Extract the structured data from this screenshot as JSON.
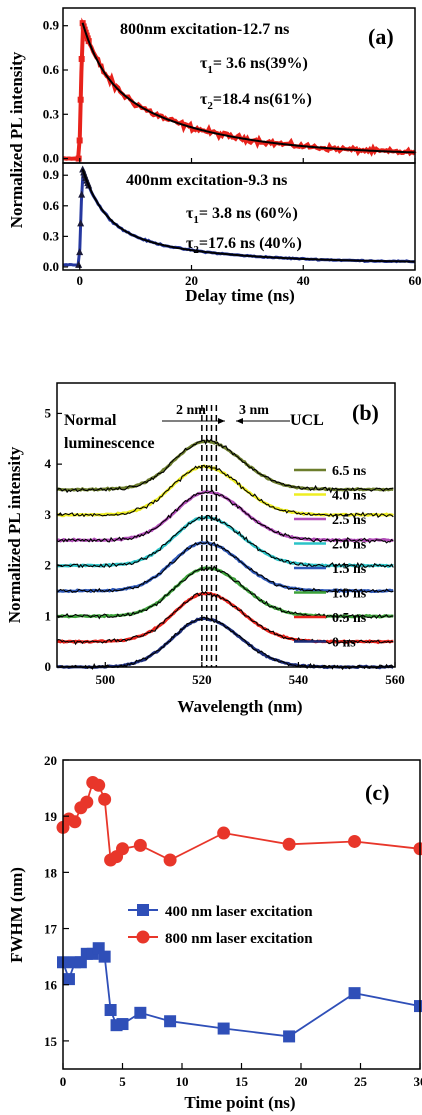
{
  "chart_data": [
    {
      "type": "line",
      "panel_label": "(a)",
      "xlabel": "Delay time (ns)",
      "ylabel": "Normalized PL intensity",
      "xlim": [
        -3,
        60
      ],
      "x_ticks": [
        "0",
        "20",
        "40",
        "60"
      ],
      "y_ticks": [
        "0.0",
        "0.3",
        "0.6",
        "0.9"
      ],
      "top": {
        "ylim": [
          -0.03,
          1.02
        ],
        "series_color": "#e8221b",
        "fit_color": "#000000",
        "text_lines": [
          "800nm excitation-12.7 ns"
        ],
        "tau1": {
          "sym": "τ",
          "sub": "1",
          "text": "= 3.6  ns(39%)"
        },
        "tau2": {
          "sym": "τ",
          "sub": "2",
          "text": "=18.4 ns(61%)"
        },
        "fit": {
          "a1": 0.39,
          "t1": 3.6,
          "a2": 0.61,
          "t2": 18.4,
          "amp": 0.9,
          "baseline": 0.0,
          "peak_x": 0.5
        }
      },
      "bottom": {
        "ylim": [
          -0.03,
          1.02
        ],
        "series_color": "#2638a0",
        "fit_color": "#000000",
        "text_lines": [
          "400nm excitation-9.3 ns"
        ],
        "tau1": {
          "sym": "τ",
          "sub": "1",
          "text": "=  3.8 ns (60%)"
        },
        "tau2": {
          "sym": "τ",
          "sub": "2",
          "text": "=17.6 ns (40%)"
        },
        "fit": {
          "a1": 0.6,
          "t1": 3.8,
          "a2": 0.4,
          "t2": 17.6,
          "amp": 0.92,
          "baseline": 0.02,
          "peak_x": 0.5
        }
      }
    },
    {
      "type": "line",
      "panel_label": "(b)",
      "xlabel": "Wavelength (nm)",
      "ylabel": "Normalized PL intensity",
      "xlim": [
        490,
        560
      ],
      "ylim": [
        0,
        5.6
      ],
      "x_ticks": [
        "500",
        "520",
        "540",
        "560"
      ],
      "y_ticks": [
        "0",
        "1",
        "2",
        "3",
        "4",
        "5"
      ],
      "annotations": {
        "left": "Normal",
        "left2": "luminescence",
        "right": "UCL",
        "gap1": "2 nm",
        "gap2": "3 nm"
      },
      "peak_lines_nm": [
        520.0,
        521.0,
        522.0,
        523.0
      ],
      "series": [
        {
          "name": "0   ns",
          "offset": 0.0,
          "color": "#1c2d7a"
        },
        {
          "name": "0.5 ns",
          "offset": 0.5,
          "color": "#e8221b"
        },
        {
          "name": "1.0 ns",
          "offset": 1.0,
          "color": "#3da23a"
        },
        {
          "name": "1.5 ns",
          "offset": 1.5,
          "color": "#2e58b8"
        },
        {
          "name": "2.0 ns",
          "offset": 2.0,
          "color": "#2bc3c7"
        },
        {
          "name": "2.5 ns",
          "offset": 2.5,
          "color": "#b14cb8"
        },
        {
          "name": "4.0 ns",
          "offset": 3.0,
          "color": "#eeee22"
        },
        {
          "name": "6.5 ns",
          "offset": 3.5,
          "color": "#6c7d2c"
        }
      ]
    },
    {
      "type": "line",
      "panel_label": "(c)",
      "xlabel": "Time point (ns)",
      "ylabel": "FWHM (nm)",
      "xlim": [
        0,
        30
      ],
      "ylim": [
        14.5,
        20.0
      ],
      "x_ticks": [
        "0",
        "5",
        "10",
        "15",
        "20",
        "25",
        "30"
      ],
      "y_ticks": [
        "15",
        "16",
        "17",
        "18",
        "19",
        "20"
      ],
      "series": [
        {
          "name": "400 nm laser excitation",
          "color": "#2f4fb8",
          "marker": "square",
          "x": [
            0,
            0.5,
            1.0,
            1.5,
            2.0,
            2.5,
            3.0,
            3.5,
            4.0,
            4.5,
            5.0,
            6.5,
            9.0,
            13.5,
            19.0,
            24.5,
            30.0
          ],
          "y": [
            16.4,
            16.1,
            16.4,
            16.4,
            16.55,
            16.55,
            16.65,
            16.5,
            15.55,
            15.28,
            15.3,
            15.5,
            15.35,
            15.22,
            15.08,
            15.85,
            15.62
          ]
        },
        {
          "name": "800 nm laser excitation",
          "color": "#e8362a",
          "marker": "circle",
          "x": [
            0,
            0.5,
            1.0,
            1.5,
            2.0,
            2.5,
            3.0,
            3.5,
            4.0,
            4.5,
            5.0,
            6.5,
            9.0,
            13.5,
            19.0,
            24.5,
            30.0
          ],
          "y": [
            18.8,
            18.95,
            18.9,
            19.15,
            19.25,
            19.6,
            19.55,
            19.3,
            18.22,
            18.28,
            18.42,
            18.48,
            18.22,
            18.7,
            18.5,
            18.55,
            18.42
          ]
        }
      ]
    }
  ]
}
